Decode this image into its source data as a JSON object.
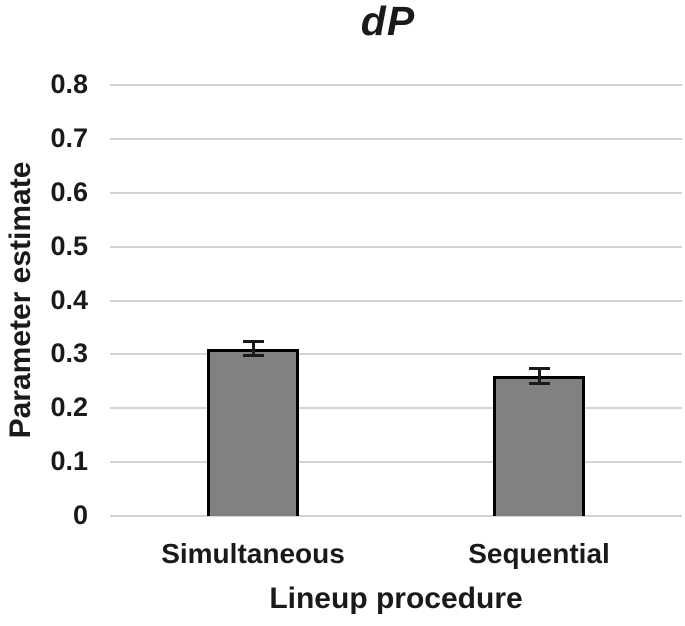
{
  "chart_data": {
    "type": "bar",
    "title": "dP",
    "xlabel": "Lineup procedure",
    "ylabel": "Parameter estimate",
    "categories": [
      "Simultaneous",
      "Sequential"
    ],
    "values": [
      0.31,
      0.26
    ],
    "errors": [
      0.013,
      0.014
    ],
    "ylim": [
      0,
      0.8
    ],
    "ytick_step": 0.1,
    "ytick_labels": [
      "0",
      "0.1",
      "0.2",
      "0.3",
      "0.4",
      "0.5",
      "0.6",
      "0.7",
      "0.8"
    ],
    "grid": true,
    "legend": "none",
    "bar_color": "#818181",
    "bar_border_color": "#000000",
    "gridline_color": "#d4d4d4",
    "error_bar_color": "#1a1a1a",
    "text_color": "#1a1a1a",
    "background_color": "#ffffff"
  }
}
